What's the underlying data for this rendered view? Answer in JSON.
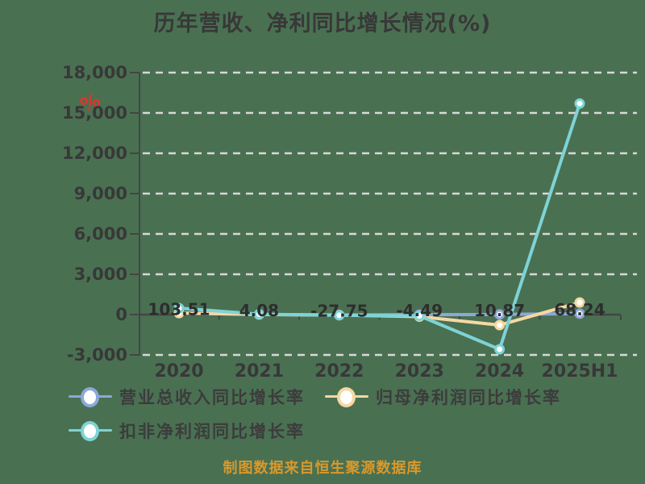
{
  "title": "历年营收、净利同比增长情况(%)",
  "watermark_symbol": "%",
  "caption": "制图数据来自恒生聚源数据库",
  "colors": {
    "background": "#4a7052",
    "title_text": "#383838",
    "axis": "#454545",
    "tick_label": "#383838",
    "data_label": "#2d2d2d",
    "gridline": "#d8d8d8",
    "caption": "#d8992b",
    "watermark": "#de352c"
  },
  "chart_data": {
    "type": "line",
    "title": "历年营收、净利同比增长情况(%)",
    "categories": [
      "2020",
      "2021",
      "2022",
      "2023",
      "2024",
      "2025H1"
    ],
    "series": [
      {
        "name": "营业总收入同比增长率",
        "color": "#8da8d8",
        "values": [
          103.51,
          4.08,
          -27.75,
          -4.49,
          10.87,
          68.24
        ]
      },
      {
        "name": "归母净利润同比增长率",
        "color": "#f6d8a2",
        "values": [
          120,
          10,
          -40,
          -150,
          -780,
          900
        ]
      },
      {
        "name": "扣非净利润同比增长率",
        "color": "#7ed3d6",
        "values": [
          480,
          30,
          -50,
          -90,
          -2580,
          15700
        ]
      }
    ],
    "point_labels": [
      "103.51",
      "4.08",
      "-27.75",
      "-4.49",
      "10.87",
      "68.24"
    ],
    "labeled_series_index": 0,
    "yticks": [
      {
        "label": "18,000",
        "value": 18000
      },
      {
        "label": "15,000",
        "value": 15000
      },
      {
        "label": "12,000",
        "value": 12000
      },
      {
        "label": "9,000",
        "value": 9000
      },
      {
        "label": "6,000",
        "value": 6000
      },
      {
        "label": "3,000",
        "value": 3000
      },
      {
        "label": "0",
        "value": 0
      },
      {
        "label": "-3,000",
        "value": -3000
      }
    ],
    "ylim": [
      -3000,
      18000
    ],
    "xlabel": "",
    "ylabel": "",
    "grid": "horizontal-dashed",
    "legend_position": "bottom",
    "marker_style": "white-filled-circle"
  }
}
